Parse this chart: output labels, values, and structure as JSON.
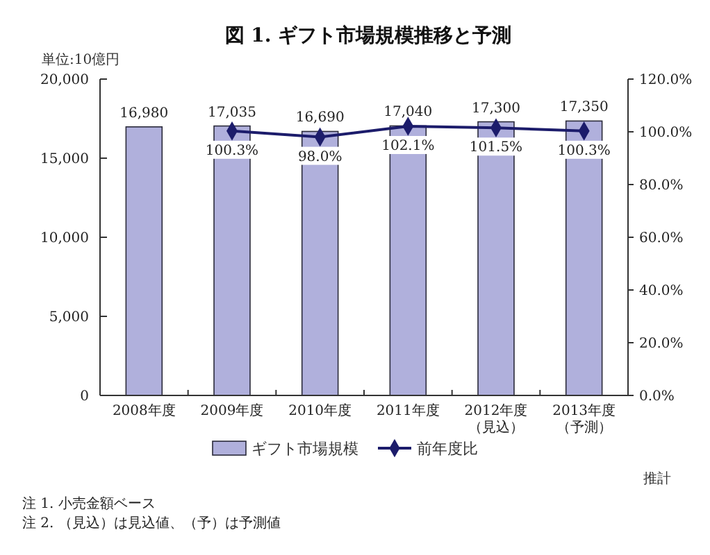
{
  "chart_data": {
    "type": "bar",
    "title": "図 1. ギフト市場規模推移と予測",
    "ylabel": "単位:10億円",
    "categories": [
      "2008年度",
      "2009年度",
      "2010年度",
      "2011年度",
      "2012年度（見込）",
      "2013年度（予測）"
    ],
    "series": [
      {
        "name": "ギフト市場規模",
        "color": "#b0b0dc",
        "values": [
          16980,
          17035,
          16690,
          17040,
          17300,
          17350
        ],
        "value_labels": [
          "16,980",
          "17,035",
          "16,690",
          "17,040",
          "17,300",
          "17,350"
        ]
      },
      {
        "name": "前年度比",
        "type": "line",
        "axis": "y2",
        "color": "#1c1c6b",
        "values": [
          null,
          100.3,
          98.0,
          102.1,
          101.5,
          100.3
        ],
        "value_labels": [
          null,
          "100.3%",
          "98.0%",
          "102.1%",
          "101.5%",
          "100.3%"
        ]
      }
    ],
    "ylim": [
      0,
      20000
    ],
    "yticks": [
      0,
      {
        "value": 5000,
        "label": "5,000"
      },
      {
        "value": 10000,
        "label": "10,000"
      },
      {
        "value": 15000,
        "label": "15,000"
      },
      {
        "value": 20000,
        "label": "20,000"
      }
    ],
    "y2lim": [
      0,
      120
    ],
    "y2ticks": [
      {
        "value": 0,
        "label": "0.0%"
      },
      {
        "value": 20,
        "label": "20.0%"
      },
      {
        "value": 40,
        "label": "40.0%"
      },
      {
        "value": 60,
        "label": "60.0%"
      },
      {
        "value": 80,
        "label": "80.0%"
      },
      {
        "value": 100,
        "label": "100.0%"
      },
      {
        "value": 120,
        "label": "120.0%"
      }
    ],
    "grid": false,
    "legend": "bottom",
    "marker": "diamond",
    "annotations": [
      "推計",
      "注 1. 小売金額ベース",
      "注 2. （見込）は見込値、（予）は予測値"
    ]
  }
}
